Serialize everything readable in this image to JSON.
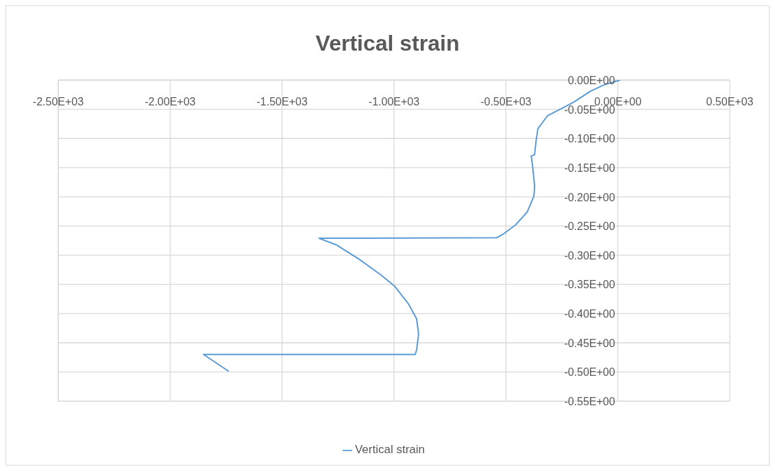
{
  "chart_data": {
    "type": "line",
    "title": "Vertical strain",
    "series": [
      {
        "name": "Vertical strain",
        "color": "#5b9bd5",
        "x": [
          10,
          -61,
          -122,
          -198,
          -314,
          -357,
          -366,
          -372,
          -387,
          -381,
          -372,
          -375,
          -405,
          -457,
          -509,
          -540,
          -1335,
          -1259,
          -1159,
          -1058,
          -997,
          -936,
          -899,
          -890,
          -899,
          -905,
          -1851,
          -1738
        ],
        "values": [
          0,
          -0.008,
          -0.019,
          -0.038,
          -0.061,
          -0.083,
          -0.106,
          -0.128,
          -0.13,
          -0.147,
          -0.181,
          -0.199,
          -0.226,
          -0.248,
          -0.263,
          -0.27,
          -0.271,
          -0.282,
          -0.306,
          -0.334,
          -0.353,
          -0.383,
          -0.409,
          -0.435,
          -0.462,
          -0.47,
          -0.47,
          -0.499
        ]
      }
    ],
    "xlim": [
      -2500,
      500
    ],
    "xticks": [
      {
        "value": -2500,
        "label": "-2.50E+03"
      },
      {
        "value": -2000,
        "label": "-2.00E+03"
      },
      {
        "value": -1500,
        "label": "-1.50E+03"
      },
      {
        "value": -1000,
        "label": "-1.00E+03"
      },
      {
        "value": -500,
        "label": "-0.50E+03"
      },
      {
        "value": 0,
        "label": "0.00E+00"
      },
      {
        "value": 500,
        "label": "0.50E+03"
      }
    ],
    "ylim": [
      -0.55,
      0
    ],
    "yticks": [
      {
        "value": 0,
        "label": "0.00E+00"
      },
      {
        "value": -0.05,
        "label": "-0.05E+00"
      },
      {
        "value": -0.1,
        "label": "-0.10E+00"
      },
      {
        "value": -0.15,
        "label": "-0.15E+00"
      },
      {
        "value": -0.2,
        "label": "-0.20E+00"
      },
      {
        "value": -0.25,
        "label": "-0.25E+00"
      },
      {
        "value": -0.3,
        "label": "-0.30E+00"
      },
      {
        "value": -0.35,
        "label": "-0.35E+00"
      },
      {
        "value": -0.4,
        "label": "-0.40E+00"
      },
      {
        "value": -0.45,
        "label": "-0.45E+00"
      },
      {
        "value": -0.5,
        "label": "-0.50E+00"
      },
      {
        "value": -0.55,
        "label": "-0.55E+00"
      }
    ],
    "grid": true,
    "legend": "bottom",
    "marker": "none",
    "line_style": "solid"
  }
}
